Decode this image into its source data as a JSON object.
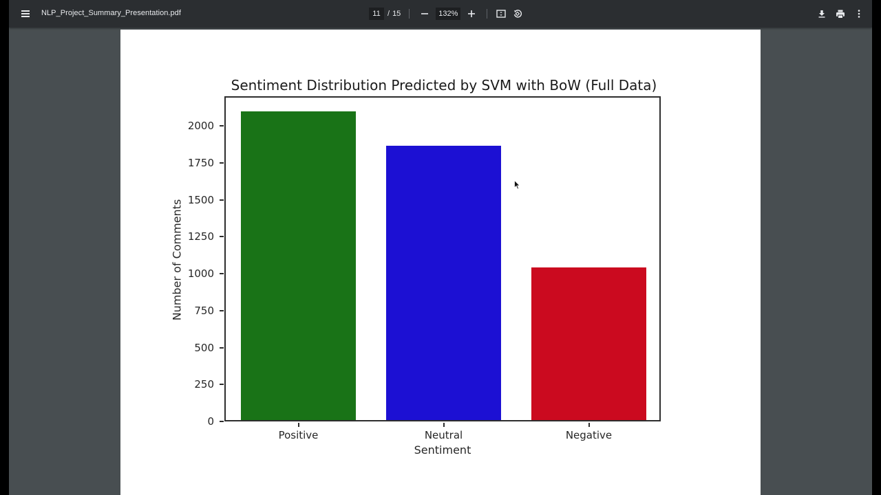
{
  "toolbar": {
    "filename": "NLP_Project_Summary_Presentation.pdf",
    "current_page": "11",
    "page_separator": "/",
    "total_pages": "15",
    "zoom_level": "132%",
    "icons": {
      "menu": "hamburger-menu-icon",
      "zoom_out": "minus-icon",
      "zoom_in": "plus-icon",
      "fit_page": "fit-to-page-icon",
      "rotate": "rotate-counterclockwise-icon",
      "download": "download-icon",
      "print": "print-icon",
      "more": "more-vertical-icon"
    }
  },
  "colors": {
    "toolbar_bg": "#2b2e31",
    "viewer_bg": "#484e51",
    "positive": "#197317",
    "neutral": "#1c10d3",
    "negative": "#cb0a1f"
  },
  "chart_data": {
    "type": "bar",
    "title": "Sentiment Distribution Predicted by SVM with BoW (Full Data)",
    "xlabel": "Sentiment",
    "ylabel": "Number of Comments",
    "categories": [
      "Positive",
      "Neutral",
      "Negative"
    ],
    "values": [
      2088,
      1856,
      1033
    ],
    "colors": [
      "#197317",
      "#1c10d3",
      "#cb0a1f"
    ],
    "ylim": [
      0,
      2200
    ],
    "yticks": [
      "0",
      "250",
      "500",
      "750",
      "1000",
      "1250",
      "1500",
      "1750",
      "2000"
    ],
    "grid": false,
    "legend": null
  }
}
